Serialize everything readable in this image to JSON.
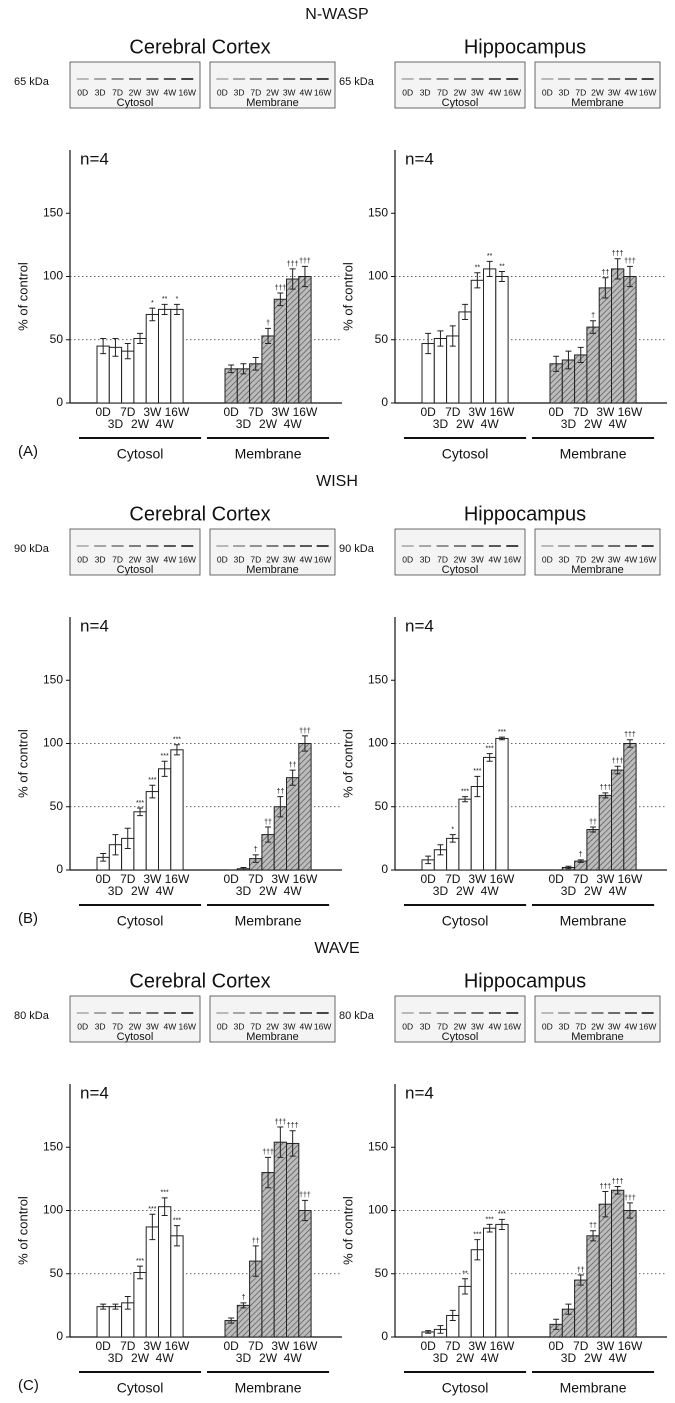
{
  "chart_data": [
    {
      "type": "bar",
      "figure_title": "N-WASP",
      "panel_label": "(A)",
      "title": "Cerebral Cortex",
      "blot_kda": "65 kDa",
      "annotation": "n=4",
      "ylabel": "% of control",
      "categories": [
        "0D",
        "3D",
        "7D",
        "2W",
        "3W",
        "4W",
        "16W"
      ],
      "ylim": [
        0,
        200
      ],
      "yticks": [
        0,
        50,
        100,
        150
      ],
      "grid_lines": [
        50,
        100
      ],
      "series": [
        {
          "name": "Cytosol",
          "color": "#ffffff",
          "hatch": false,
          "values": [
            45,
            44,
            41,
            51,
            70,
            74,
            74
          ],
          "errors": [
            6,
            7,
            6,
            4,
            5,
            4,
            4
          ],
          "markers": [
            null,
            null,
            null,
            null,
            "*",
            "**",
            "*"
          ]
        },
        {
          "name": "Membrane",
          "color": "#b8b8b8",
          "hatch": true,
          "values": [
            27,
            27,
            31,
            53,
            82,
            98,
            100
          ],
          "errors": [
            3,
            4,
            5,
            6,
            5,
            8,
            8
          ],
          "markers": [
            null,
            null,
            null,
            "†",
            "†††",
            "†††",
            "†††"
          ]
        }
      ]
    },
    {
      "type": "bar",
      "title": "Hippocampus",
      "blot_kda": "65 kDa",
      "annotation": "n=4",
      "ylabel": "% of control",
      "categories": [
        "0D",
        "3D",
        "7D",
        "2W",
        "3W",
        "4W",
        "16W"
      ],
      "ylim": [
        0,
        200
      ],
      "yticks": [
        0,
        50,
        100,
        150
      ],
      "grid_lines": [
        50,
        100
      ],
      "series": [
        {
          "name": "Cytosol",
          "color": "#ffffff",
          "hatch": false,
          "values": [
            47,
            51,
            53,
            72,
            97,
            106,
            100
          ],
          "errors": [
            8,
            6,
            8,
            6,
            6,
            6,
            4
          ],
          "markers": [
            null,
            null,
            null,
            null,
            "**",
            "**",
            "**"
          ]
        },
        {
          "name": "Membrane",
          "color": "#b8b8b8",
          "hatch": true,
          "values": [
            31,
            34,
            38,
            60,
            91,
            106,
            100
          ],
          "errors": [
            6,
            7,
            6,
            5,
            8,
            8,
            8
          ],
          "markers": [
            null,
            null,
            null,
            "†",
            "††",
            "†††",
            "†††"
          ]
        }
      ]
    },
    {
      "type": "bar",
      "figure_title": "WISH",
      "panel_label": "(B)",
      "title": "Cerebral Cortex",
      "blot_kda": "90 kDa",
      "annotation": "n=4",
      "ylabel": "% of control",
      "categories": [
        "0D",
        "3D",
        "7D",
        "2W",
        "3W",
        "4W",
        "16W"
      ],
      "ylim": [
        0,
        200
      ],
      "yticks": [
        0,
        50,
        100,
        150
      ],
      "grid_lines": [
        50,
        100
      ],
      "series": [
        {
          "name": "Cytosol",
          "color": "#ffffff",
          "hatch": false,
          "values": [
            10,
            20,
            25,
            46,
            62,
            80,
            95
          ],
          "errors": [
            3,
            8,
            8,
            3,
            5,
            6,
            4
          ],
          "markers": [
            null,
            null,
            null,
            "***",
            "***",
            "***",
            "***"
          ]
        },
        {
          "name": "Membrane",
          "color": "#b8b8b8",
          "hatch": true,
          "values": [
            0,
            1,
            9,
            28,
            50,
            73,
            100
          ],
          "errors": [
            0,
            1,
            3,
            6,
            8,
            6,
            6
          ],
          "markers": [
            null,
            null,
            "†",
            "††",
            "††",
            "††",
            "†††"
          ]
        }
      ]
    },
    {
      "type": "bar",
      "title": "Hippocampus",
      "blot_kda": "90 kDa",
      "annotation": "n=4",
      "ylabel": "% of control",
      "categories": [
        "0D",
        "3D",
        "7D",
        "2W",
        "3W",
        "4W",
        "16W"
      ],
      "ylim": [
        0,
        200
      ],
      "yticks": [
        0,
        50,
        100,
        150
      ],
      "grid_lines": [
        50,
        100
      ],
      "series": [
        {
          "name": "Cytosol",
          "color": "#ffffff",
          "hatch": false,
          "values": [
            8,
            16,
            25,
            56,
            66,
            89,
            104
          ],
          "errors": [
            3,
            4,
            3,
            2,
            8,
            3,
            1
          ],
          "markers": [
            null,
            null,
            "*",
            "***",
            "***",
            "***",
            "***"
          ]
        },
        {
          "name": "Membrane",
          "color": "#b8b8b8",
          "hatch": true,
          "values": [
            0,
            2,
            7,
            32,
            59,
            79,
            100
          ],
          "errors": [
            0,
            1,
            1,
            2,
            2,
            3,
            3
          ],
          "markers": [
            null,
            null,
            "†",
            "††",
            "†††",
            "†††",
            "†††"
          ]
        }
      ]
    },
    {
      "type": "bar",
      "figure_title": "WAVE",
      "panel_label": "(C)",
      "title": "Cerebral Cortex",
      "blot_kda": "80 kDa",
      "annotation": "n=4",
      "ylabel": "% of control",
      "categories": [
        "0D",
        "3D",
        "7D",
        "2W",
        "3W",
        "4W",
        "16W"
      ],
      "ylim": [
        0,
        200
      ],
      "yticks": [
        0,
        50,
        100,
        150
      ],
      "grid_lines": [
        50,
        100
      ],
      "series": [
        {
          "name": "Cytosol",
          "color": "#ffffff",
          "hatch": false,
          "values": [
            24,
            24,
            27,
            51,
            87,
            103,
            80
          ],
          "errors": [
            2,
            2,
            5,
            5,
            10,
            7,
            8
          ],
          "markers": [
            null,
            null,
            null,
            "***",
            "***",
            "***",
            "***"
          ]
        },
        {
          "name": "Membrane",
          "color": "#b8b8b8",
          "hatch": true,
          "values": [
            13,
            25,
            60,
            130,
            154,
            153,
            100
          ],
          "errors": [
            2,
            2,
            12,
            12,
            12,
            10,
            8
          ],
          "markers": [
            null,
            "†",
            "††",
            "†††",
            "†††",
            "†††",
            "†††"
          ]
        }
      ]
    },
    {
      "type": "bar",
      "title": "Hippocampus",
      "blot_kda": "80 kDa",
      "annotation": "n=4",
      "ylabel": "% of control",
      "categories": [
        "0D",
        "3D",
        "7D",
        "2W",
        "3W",
        "4W",
        "16W"
      ],
      "ylim": [
        0,
        200
      ],
      "yticks": [
        0,
        50,
        100,
        150
      ],
      "grid_lines": [
        50,
        100
      ],
      "series": [
        {
          "name": "Cytosol",
          "color": "#ffffff",
          "hatch": false,
          "values": [
            4,
            6,
            17,
            40,
            69,
            86,
            89
          ],
          "errors": [
            1,
            3,
            4,
            6,
            8,
            3,
            4
          ],
          "markers": [
            null,
            null,
            null,
            "**",
            "***",
            "***",
            "***"
          ]
        },
        {
          "name": "Membrane",
          "color": "#b8b8b8",
          "hatch": true,
          "values": [
            10,
            22,
            45,
            80,
            105,
            116,
            100
          ],
          "errors": [
            4,
            4,
            4,
            4,
            10,
            3,
            6
          ],
          "markers": [
            null,
            null,
            "††",
            "††",
            "†††",
            "†††",
            "†††"
          ]
        }
      ]
    }
  ]
}
